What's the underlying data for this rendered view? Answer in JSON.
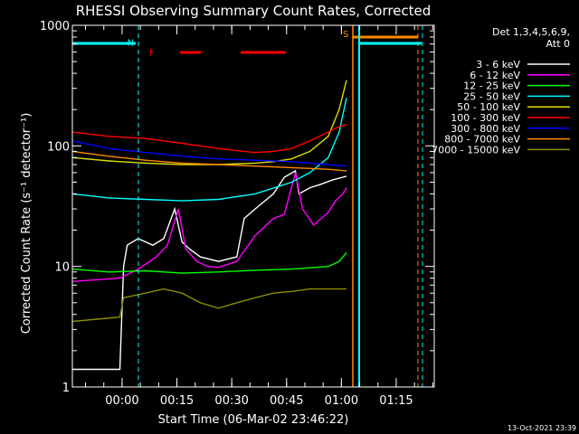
{
  "chart_data": {
    "type": "line",
    "title": "RHESSI Observing Summary Count Rates, Corrected",
    "ylabel": "Corrected Count Rate (s⁻¹ detector⁻¹)",
    "xlabel": "Start Time (06-Mar-02 23:46:22)",
    "y_scale": "log",
    "ylim": [
      1,
      1000
    ],
    "yticks": [
      {
        "value": 1,
        "label": "1"
      },
      {
        "value": 10,
        "label": "10"
      },
      {
        "value": 100,
        "label": "100"
      },
      {
        "value": 1000,
        "label": "1000"
      }
    ],
    "x_unit": "minutes after 23:46:22",
    "xlim": [
      0,
      99
    ],
    "xticks": [
      {
        "value": 13.6,
        "label": "00:00"
      },
      {
        "value": 28.6,
        "label": "00:15"
      },
      {
        "value": 43.6,
        "label": "00:30"
      },
      {
        "value": 58.6,
        "label": "00:45"
      },
      {
        "value": 73.6,
        "label": "01:00"
      },
      {
        "value": 88.6,
        "label": "01:15"
      }
    ],
    "legend_header": [
      "Det 1,3,4,5,6,9,",
      "Att 0"
    ],
    "legend_position": "right",
    "series": [
      {
        "name": "3 - 6 keV",
        "color": "#ffffff",
        "x": [
          0,
          13,
          14,
          15,
          18,
          22,
          25,
          28,
          30,
          32,
          35,
          40,
          45,
          47,
          50,
          55,
          58,
          61,
          62,
          65,
          68,
          71,
          74,
          75
        ],
        "y": [
          1.4,
          1.4,
          10,
          15,
          17,
          15,
          17,
          30,
          16,
          14,
          12,
          11,
          12,
          25,
          30,
          40,
          55,
          62,
          40,
          45,
          48,
          52,
          55,
          56
        ]
      },
      {
        "name": "6 - 12 keV",
        "color": "#ff00ff",
        "x": [
          0,
          13,
          18,
          23,
          26,
          29,
          31,
          34,
          37,
          40,
          45,
          50,
          55,
          58,
          61,
          63,
          66,
          70,
          72,
          74,
          75
        ],
        "y": [
          7.5,
          8.0,
          9.5,
          12,
          15,
          30,
          14,
          11,
          10,
          9.8,
          11,
          18,
          25,
          27,
          60,
          30,
          22,
          28,
          35,
          40,
          45
        ]
      },
      {
        "name": "12 - 25 keV",
        "color": "#00ff00",
        "x": [
          0,
          10,
          20,
          30,
          40,
          50,
          60,
          70,
          73,
          75
        ],
        "y": [
          9.5,
          9.0,
          9.2,
          8.8,
          9.0,
          9.3,
          9.5,
          10,
          11,
          13
        ]
      },
      {
        "name": "25 - 50 keV",
        "color": "#00ffff",
        "x": [
          0,
          10,
          20,
          30,
          40,
          50,
          60,
          65,
          70,
          73,
          75
        ],
        "y": [
          40,
          37,
          36,
          35,
          36,
          40,
          50,
          60,
          80,
          130,
          250
        ]
      },
      {
        "name": "50 - 100 keV",
        "color": "#dddd00",
        "x": [
          0,
          10,
          20,
          30,
          40,
          50,
          55,
          60,
          65,
          70,
          73,
          75
        ],
        "y": [
          80,
          75,
          72,
          70,
          70,
          72,
          74,
          78,
          90,
          120,
          200,
          350
        ]
      },
      {
        "name": "100 - 300 keV",
        "color": "#ff0000",
        "x": [
          0,
          10,
          20,
          30,
          40,
          50,
          55,
          60,
          65,
          70,
          73,
          75
        ],
        "y": [
          130,
          120,
          115,
          105,
          95,
          88,
          90,
          95,
          110,
          130,
          145,
          150
        ]
      },
      {
        "name": "300 - 800 keV",
        "color": "#0000ff",
        "x": [
          0,
          10,
          20,
          30,
          40,
          50,
          60,
          70,
          75
        ],
        "y": [
          110,
          95,
          88,
          82,
          78,
          76,
          74,
          70,
          68
        ]
      },
      {
        "name": "800 - 7000 keV",
        "color": "#ff8800",
        "x": [
          0,
          10,
          20,
          30,
          40,
          50,
          60,
          70,
          75
        ],
        "y": [
          90,
          82,
          76,
          72,
          70,
          68,
          66,
          64,
          62
        ]
      },
      {
        "name": "7000 - 15000 keV",
        "color": "#8b8b00",
        "x": [
          0,
          13,
          14,
          20,
          25,
          30,
          35,
          40,
          45,
          50,
          55,
          60,
          65,
          70,
          75
        ],
        "y": [
          3.5,
          3.8,
          5.5,
          6.0,
          6.5,
          6.0,
          5.0,
          4.5,
          5.0,
          5.5,
          6.0,
          6.2,
          6.5,
          6.5,
          6.5
        ]
      }
    ],
    "annotations": [
      {
        "text": "N",
        "color": "#00ffff",
        "x": 15,
        "y": 680
      },
      {
        "text": "F",
        "color": "#ff0000",
        "x": 21,
        "y": 560
      },
      {
        "text": "S",
        "color": "#ff8800",
        "x": 74,
        "y": 800
      }
    ],
    "footer_date": "13-Oct-2021 23:39"
  }
}
